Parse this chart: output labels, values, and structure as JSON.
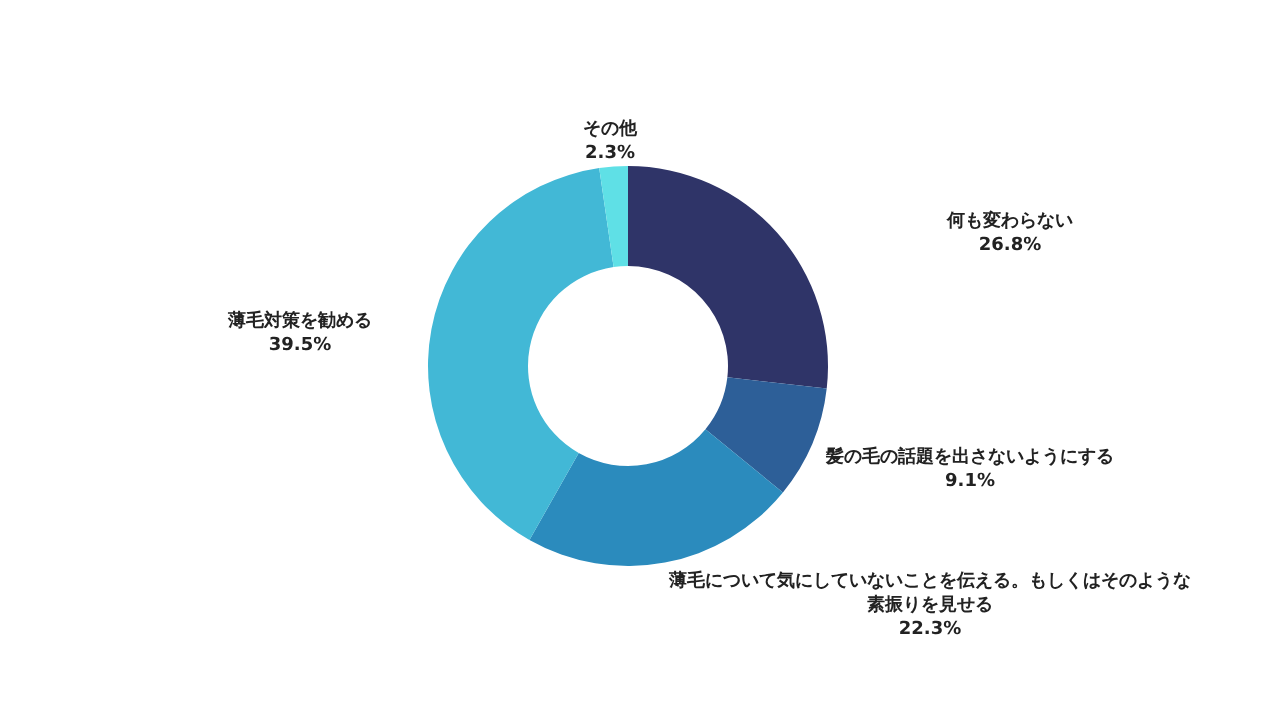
{
  "chart_data": {
    "type": "donut",
    "categories": [
      "何も変わらない",
      "髪の毛の話題を出さないようにする",
      "薄毛について気にしていないことを伝える。もしくはそのような素振りを見せる",
      "薄毛対策を勧める",
      "その他"
    ],
    "values": [
      26.8,
      9.1,
      22.3,
      39.5,
      2.3
    ],
    "value_labels": [
      "26.8%",
      "9.1%",
      "22.3%",
      "39.5%",
      "2.3%"
    ],
    "colors": [
      "#2f3468",
      "#2d5f98",
      "#2b8bbd",
      "#42b8d6",
      "#5fe0e6"
    ]
  }
}
